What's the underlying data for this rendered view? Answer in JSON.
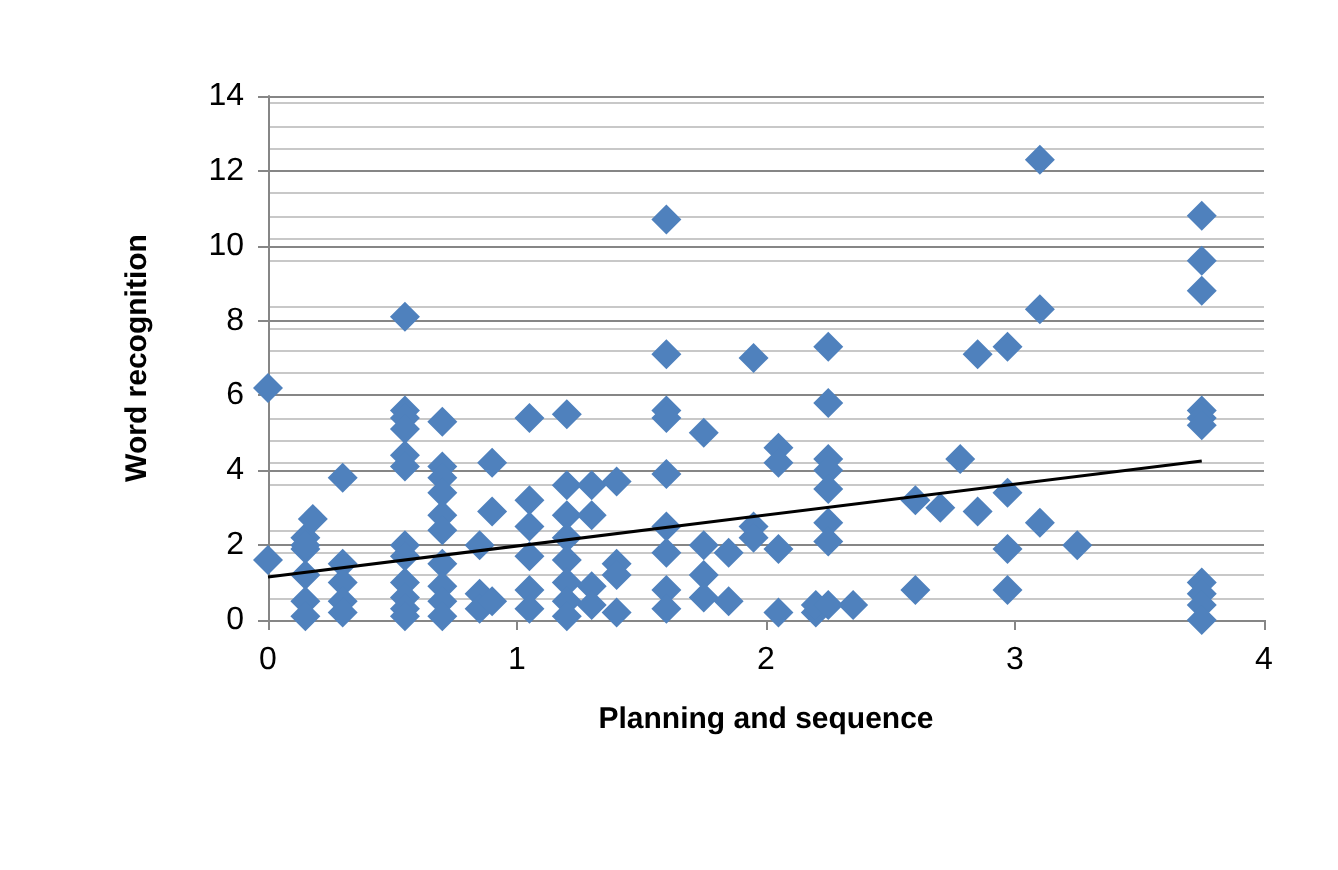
{
  "chart_data": {
    "type": "scatter",
    "xlabel": "Planning and sequence",
    "ylabel": "Word recognition",
    "xlim": [
      0,
      4
    ],
    "xticks": [
      0,
      1,
      2,
      3,
      4
    ],
    "ylim": [
      0,
      14
    ],
    "yticks": [
      0,
      2,
      4,
      6,
      8,
      10,
      12,
      14
    ],
    "grid": "y",
    "marker": "diamond",
    "series": [
      {
        "color": "#4f81bd",
        "x": [
          0,
          0,
          0.15,
          0.15,
          0.15,
          0.15,
          0.15,
          0.15,
          0.18,
          0.3,
          0.3,
          0.3,
          0.3,
          0.3,
          0.55,
          0.55,
          0.55,
          0.55,
          0.55,
          0.55,
          0.55,
          0.55,
          0.55,
          0.55,
          0.55,
          0.55,
          0.7,
          0.7,
          0.7,
          0.7,
          0.7,
          0.7,
          0.7,
          0.7,
          0.7,
          0.7,
          0.85,
          0.85,
          0.85,
          0.9,
          0.9,
          0.9,
          1.05,
          1.05,
          1.05,
          1.05,
          1.05,
          1.05,
          1.2,
          1.2,
          1.2,
          1.2,
          1.2,
          1.2,
          1.2,
          1.2,
          1.3,
          1.3,
          1.3,
          1.3,
          1.4,
          1.4,
          1.4,
          1.4,
          1.6,
          1.6,
          1.6,
          1.6,
          1.6,
          1.6,
          1.6,
          1.6,
          1.6,
          1.75,
          1.75,
          1.75,
          1.75,
          1.85,
          1.85,
          1.95,
          1.95,
          1.95,
          2.05,
          2.05,
          2.05,
          2.05,
          2.2,
          2.2,
          2.25,
          2.25,
          2.25,
          2.25,
          2.25,
          2.25,
          2.25,
          2.25,
          2.35,
          2.6,
          2.6,
          2.7,
          2.78,
          2.85,
          2.85,
          2.97,
          2.97,
          2.97,
          2.97,
          3.1,
          3.1,
          3.1,
          3.25,
          3.75,
          3.75,
          3.75,
          3.75,
          3.75,
          3.75,
          3.75,
          3.75,
          3.75,
          3.75
        ],
        "values": [
          6.2,
          1.6,
          2.2,
          1.9,
          2.0,
          1.2,
          0.5,
          0.1,
          2.7,
          3.8,
          1.5,
          1.0,
          0.5,
          0.2,
          8.1,
          5.6,
          5.4,
          5.1,
          4.4,
          4.1,
          2.0,
          1.7,
          1.0,
          0.6,
          0.3,
          0.1,
          5.3,
          4.1,
          3.8,
          3.4,
          2.8,
          2.4,
          1.5,
          0.9,
          0.5,
          0.1,
          2.0,
          0.7,
          0.3,
          4.2,
          2.9,
          0.5,
          5.4,
          3.2,
          2.5,
          1.7,
          0.8,
          0.3,
          5.5,
          3.6,
          2.8,
          2.2,
          1.6,
          1.0,
          0.5,
          0.1,
          3.6,
          2.8,
          0.9,
          0.4,
          3.7,
          1.5,
          1.2,
          0.2,
          10.7,
          7.1,
          5.6,
          5.4,
          3.9,
          2.5,
          1.8,
          0.8,
          0.3,
          5.0,
          2.0,
          1.2,
          0.6,
          1.8,
          0.5,
          7.0,
          2.5,
          2.2,
          4.6,
          4.2,
          1.9,
          0.2,
          0.2,
          0.4,
          7.3,
          5.8,
          4.3,
          4.0,
          3.5,
          2.6,
          2.1,
          0.4,
          0.4,
          3.2,
          0.8,
          3.0,
          4.3,
          7.1,
          2.9,
          7.3,
          3.4,
          1.9,
          0.8,
          12.3,
          8.3,
          2.6,
          2.0,
          10.8,
          9.6,
          8.8,
          5.6,
          5.4,
          5.2,
          1.0,
          0.7,
          0.4,
          0.0
        ]
      },
      {
        "type": "line",
        "marker": "none",
        "color": "#000000",
        "x": [
          0,
          3.75
        ],
        "values": [
          1.15,
          4.25
        ]
      }
    ]
  }
}
